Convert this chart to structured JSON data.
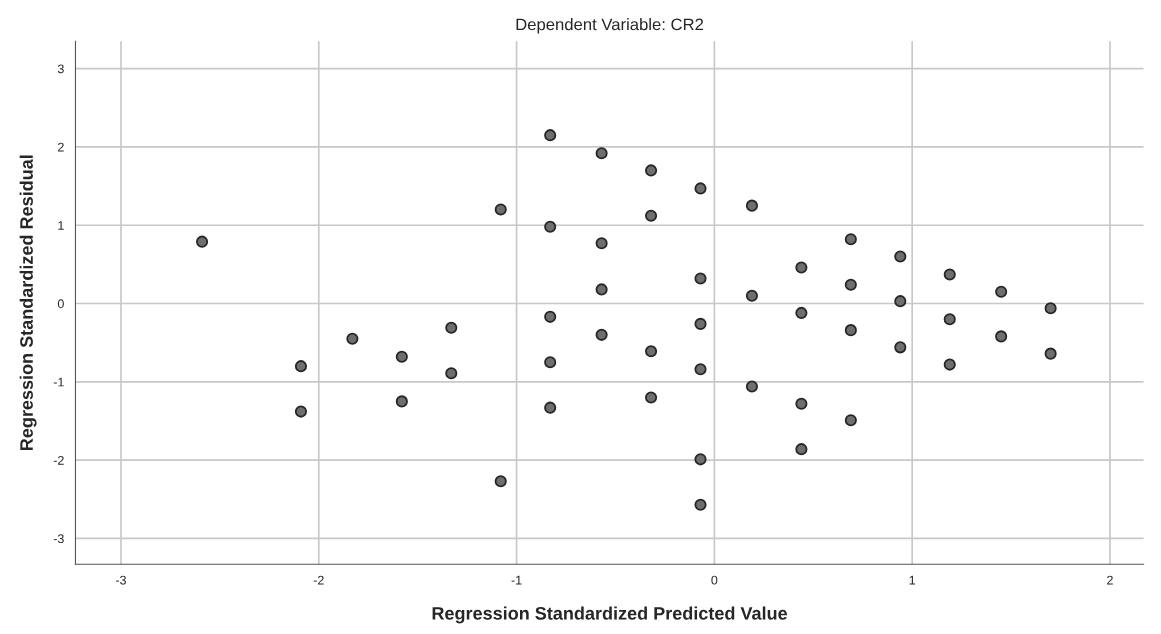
{
  "chart_data": {
    "type": "scatter",
    "title": "Dependent Variable: CR2",
    "xlabel": "Regression Standardized Predicted Value",
    "ylabel": "Regression Standardized Residual",
    "x": [
      -2.59,
      -2.09,
      -2.09,
      -1.83,
      -1.58,
      -1.58,
      -1.33,
      -1.33,
      -1.08,
      -1.08,
      -0.83,
      -0.83,
      -0.83,
      -0.83,
      -0.83,
      -0.57,
      -0.57,
      -0.57,
      -0.57,
      -0.32,
      -0.32,
      -0.32,
      -0.32,
      -0.07,
      -0.07,
      -0.07,
      -0.07,
      -0.07,
      -0.07,
      0.19,
      0.19,
      0.19,
      0.44,
      0.44,
      0.44,
      0.44,
      0.69,
      0.69,
      0.69,
      0.69,
      0.94,
      0.94,
      0.94,
      1.19,
      1.19,
      1.19,
      1.45,
      1.45,
      1.7,
      1.7
    ],
    "values": [
      0.79,
      -0.8,
      -1.38,
      -0.45,
      -0.68,
      -1.25,
      -0.31,
      -0.89,
      1.2,
      -2.27,
      2.15,
      0.98,
      -0.17,
      -0.75,
      -1.33,
      1.92,
      0.77,
      0.18,
      -0.4,
      1.7,
      1.12,
      -0.61,
      -1.2,
      1.47,
      0.32,
      -0.26,
      -0.84,
      -1.99,
      -2.57,
      1.25,
      0.1,
      -1.06,
      0.46,
      -0.12,
      -1.28,
      -1.86,
      0.82,
      0.24,
      -0.34,
      -1.49,
      0.6,
      0.03,
      -0.56,
      0.37,
      -0.2,
      -0.78,
      0.15,
      -0.42,
      -0.06,
      -0.64
    ],
    "color": "#6e6e6e",
    "marker": "circle",
    "xlim": [
      -3.23,
      2.17
    ],
    "ylim": [
      -3.33,
      3.35
    ],
    "xticks": [
      -3,
      -2,
      -1,
      0,
      1,
      2
    ],
    "yticks": [
      -3,
      -2,
      -1,
      0,
      1,
      2,
      3
    ],
    "grid": true
  }
}
